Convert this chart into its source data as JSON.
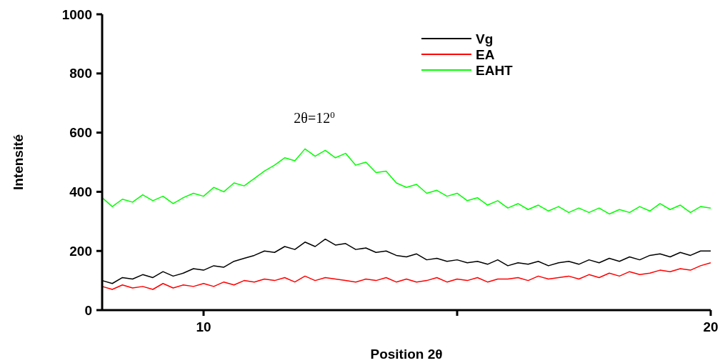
{
  "chart_data": {
    "type": "line",
    "xlabel": "Position 2θ",
    "ylabel": "Intensité",
    "x": [
      8,
      8.2,
      8.4,
      8.6,
      8.8,
      9,
      9.2,
      9.4,
      9.6,
      9.8,
      10,
      10.2,
      10.4,
      10.6,
      10.8,
      11,
      11.2,
      11.4,
      11.6,
      11.8,
      12,
      12.2,
      12.4,
      12.6,
      12.8,
      13,
      13.2,
      13.4,
      13.6,
      13.8,
      14,
      14.2,
      14.4,
      14.6,
      14.8,
      15,
      15.2,
      15.4,
      15.6,
      15.8,
      16,
      16.2,
      16.4,
      16.6,
      16.8,
      17,
      17.2,
      17.4,
      17.6,
      17.8,
      18,
      18.2,
      18.4,
      18.6,
      18.8,
      19,
      19.2,
      19.4,
      19.6,
      19.8,
      20
    ],
    "series": [
      {
        "name": "Vg",
        "color": "#000000",
        "values": [
          100,
          90,
          110,
          105,
          120,
          110,
          130,
          115,
          125,
          140,
          135,
          150,
          145,
          165,
          175,
          185,
          200,
          195,
          215,
          205,
          230,
          215,
          240,
          220,
          225,
          205,
          210,
          195,
          200,
          185,
          180,
          190,
          170,
          175,
          165,
          170,
          160,
          165,
          155,
          170,
          150,
          160,
          155,
          165,
          150,
          160,
          165,
          155,
          170,
          160,
          175,
          165,
          180,
          170,
          185,
          190,
          180,
          195,
          185,
          200,
          200
        ]
      },
      {
        "name": "EA",
        "color": "#ff0000",
        "values": [
          80,
          70,
          85,
          75,
          80,
          70,
          90,
          75,
          85,
          80,
          90,
          80,
          95,
          85,
          100,
          95,
          105,
          100,
          110,
          95,
          115,
          100,
          110,
          105,
          100,
          95,
          105,
          100,
          110,
          95,
          105,
          95,
          100,
          110,
          95,
          105,
          100,
          110,
          95,
          105,
          105,
          110,
          100,
          115,
          105,
          110,
          115,
          105,
          120,
          110,
          125,
          115,
          130,
          120,
          125,
          135,
          130,
          140,
          135,
          150,
          160
        ]
      },
      {
        "name": "EAHT",
        "color": "#00ff00",
        "values": [
          380,
          350,
          375,
          365,
          390,
          370,
          385,
          360,
          380,
          395,
          385,
          415,
          400,
          430,
          420,
          445,
          470,
          490,
          515,
          505,
          545,
          520,
          540,
          515,
          530,
          490,
          500,
          465,
          470,
          430,
          415,
          425,
          395,
          405,
          385,
          395,
          370,
          380,
          355,
          370,
          345,
          360,
          340,
          355,
          335,
          350,
          330,
          345,
          330,
          345,
          325,
          340,
          330,
          350,
          335,
          360,
          340,
          355,
          330,
          350,
          345
        ]
      }
    ],
    "xlim": [
      8,
      20
    ],
    "xticks": [
      10,
      {
        "value": 15,
        "label": null
      },
      20
    ],
    "ylim": [
      0,
      1000
    ],
    "yticks": [
      0,
      200,
      400,
      600,
      800,
      1000
    ],
    "annotations": [
      "2θ=12$^{0}$"
    ],
    "legend": "top right",
    "grid": false,
    "marker": "none",
    "line_style": "solid"
  }
}
